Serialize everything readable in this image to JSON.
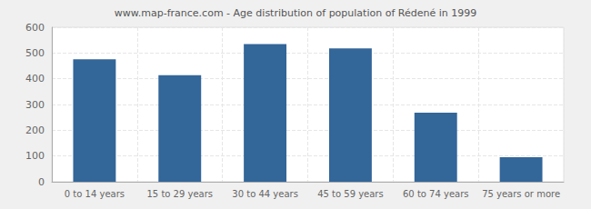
{
  "chart_data": {
    "type": "bar",
    "title": "www.map-france.com - Age distribution of population of Rédené in 1999",
    "categories": [
      "0 to 14 years",
      "15 to 29 years",
      "30 to 44 years",
      "45 to 59 years",
      "60 to 74 years",
      "75 years or more"
    ],
    "values": [
      476,
      414,
      535,
      518,
      268,
      95
    ],
    "color": "#336699",
    "ylim": [
      0,
      600
    ],
    "yticks": [
      0,
      100,
      200,
      300,
      400,
      500,
      600
    ],
    "grid": true
  }
}
